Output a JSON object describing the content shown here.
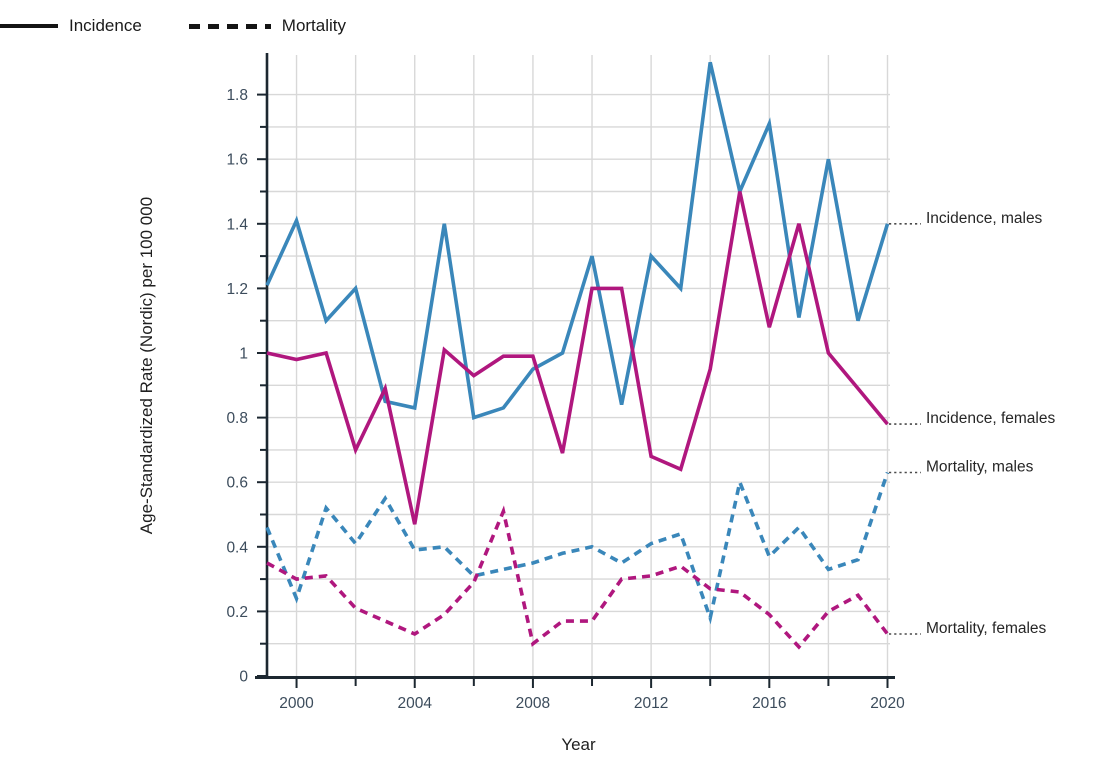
{
  "legend": {
    "incidence_label": "Incidence",
    "mortality_label": "Mortality"
  },
  "axes": {
    "y_title": "Age-Standardized Rate (Nordic) per 100 000",
    "x_title": "Year",
    "y_tick_labels": [
      "0",
      "0.2",
      "0.4",
      "0.6",
      "0.8",
      "1",
      "1.2",
      "1.4",
      "1.6",
      "1.8"
    ],
    "y_tick_values": [
      0,
      0.2,
      0.4,
      0.6,
      0.8,
      1,
      1.2,
      1.4,
      1.6,
      1.8
    ],
    "y_minor_values": [
      0.1,
      0.3,
      0.5,
      0.7,
      0.9,
      1.1,
      1.3,
      1.5,
      1.7
    ],
    "x_tick_labels": [
      "2000",
      "2004",
      "2008",
      "2012",
      "2016",
      "2020"
    ],
    "x_tick_values": [
      2000,
      2004,
      2008,
      2012,
      2016,
      2020
    ],
    "x_minor_values": [
      2002,
      2006,
      2010,
      2014,
      2018
    ]
  },
  "colors": {
    "males": "#3A87BA",
    "females": "#B0177E",
    "grid": "#D8D8D8",
    "axis": "#1C2730",
    "tick_text": "#3C4C5C",
    "title_text": "#1F1F1F",
    "annotation_text": "#262626",
    "leader": "#4A4A4A"
  },
  "annotations": [
    {
      "label": "Incidence, males",
      "series": 0
    },
    {
      "label": "Incidence, females",
      "series": 1
    },
    {
      "label": "Mortality, males",
      "series": 2
    },
    {
      "label": "Mortality, females",
      "series": 3
    }
  ],
  "chart_data": {
    "type": "line",
    "title": "",
    "xlabel": "Year",
    "ylabel": "Age-Standardized Rate (Nordic) per 100 000",
    "xlim": [
      1999,
      2020
    ],
    "ylim": [
      0,
      1.92
    ],
    "grid": true,
    "legend_position": "top-left",
    "x": [
      1999,
      2000,
      2001,
      2002,
      2003,
      2004,
      2005,
      2006,
      2007,
      2008,
      2009,
      2010,
      2011,
      2012,
      2013,
      2014,
      2015,
      2016,
      2017,
      2018,
      2019,
      2020
    ],
    "series": [
      {
        "name": "Incidence, males",
        "style": "solid",
        "color_key": "males",
        "values": [
          1.21,
          1.41,
          1.1,
          1.2,
          0.85,
          0.83,
          1.4,
          0.8,
          0.83,
          0.95,
          1.0,
          1.3,
          0.84,
          1.3,
          1.2,
          1.9,
          1.5,
          1.71,
          1.11,
          1.6,
          1.1,
          1.4
        ]
      },
      {
        "name": "Incidence, females",
        "style": "solid",
        "color_key": "females",
        "values": [
          1.0,
          0.98,
          1.0,
          0.7,
          0.89,
          0.47,
          1.01,
          0.93,
          0.99,
          0.99,
          0.69,
          1.2,
          1.2,
          0.68,
          0.64,
          0.95,
          1.5,
          1.08,
          1.4,
          1.0,
          0.89,
          0.78
        ]
      },
      {
        "name": "Mortality, males",
        "style": "dashed",
        "color_key": "males",
        "values": [
          0.46,
          0.24,
          0.52,
          0.41,
          0.55,
          0.39,
          0.4,
          0.31,
          0.33,
          0.35,
          0.38,
          0.4,
          0.35,
          0.41,
          0.44,
          0.18,
          0.6,
          0.37,
          0.46,
          0.33,
          0.36,
          0.63
        ]
      },
      {
        "name": "Mortality, females",
        "style": "dashed",
        "color_key": "females",
        "values": [
          0.35,
          0.3,
          0.31,
          0.21,
          0.17,
          0.13,
          0.19,
          0.29,
          0.51,
          0.1,
          0.17,
          0.17,
          0.3,
          0.31,
          0.34,
          0.27,
          0.26,
          0.19,
          0.09,
          0.2,
          0.25,
          0.13
        ]
      }
    ]
  }
}
